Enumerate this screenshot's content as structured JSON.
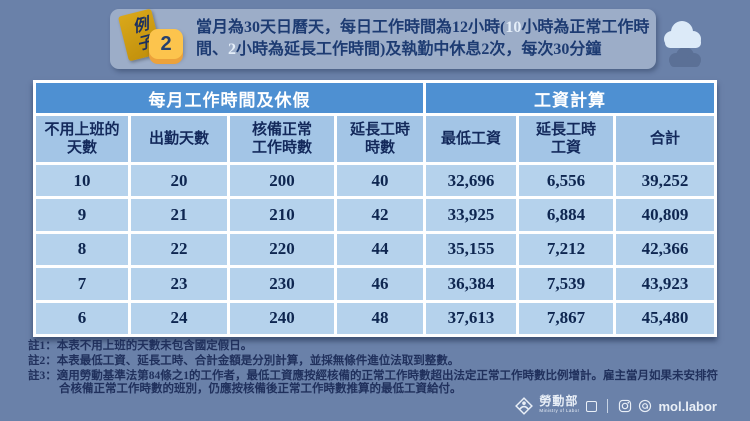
{
  "example_badge": {
    "label": "例子",
    "number": "2"
  },
  "header": {
    "segments": [
      {
        "text": "當月為30天日曆天，每日工作時間為12小時(",
        "highlight": false
      },
      {
        "text": "10",
        "highlight": true
      },
      {
        "text": "小時為正常工作時間、",
        "highlight": false
      },
      {
        "text": "2",
        "highlight": true
      },
      {
        "text": "小時為延長工作時間)及執勤中休息2次，每次30分鐘",
        "highlight": false
      }
    ]
  },
  "table": {
    "group_headers": [
      {
        "label": "每月工作時間及休假",
        "colspan": 4
      },
      {
        "label": "工資計算",
        "colspan": 3
      }
    ],
    "columns": [
      "不用上班的\n天數",
      "出勤天數",
      "核備正常\n工作時數",
      "延長工時\n時數",
      "最低工資",
      "延長工時\n工資",
      "合計"
    ],
    "rows": [
      [
        "10",
        "20",
        "200",
        "40",
        "32,696",
        "6,556",
        "39,252"
      ],
      [
        "9",
        "21",
        "210",
        "42",
        "33,925",
        "6,884",
        "40,809"
      ],
      [
        "8",
        "22",
        "220",
        "44",
        "35,155",
        "7,212",
        "42,366"
      ],
      [
        "7",
        "23",
        "230",
        "46",
        "36,384",
        "7,539",
        "43,923"
      ],
      [
        "6",
        "24",
        "240",
        "48",
        "37,613",
        "7,867",
        "45,480"
      ]
    ]
  },
  "notes": [
    "註1：本表不用上班的天數未包含國定假日。",
    "註2：本表最低工資、延長工時、合計金額是分別計算，並採無條件進位法取到整數。",
    "註3：適用勞動基準法第84條之1的工作者，最低工資應按經核備的正常工作時數超出法定正常工作時數比例增計。雇主當月如果未安排符合核備正常工作時數的班別，仍應按核備後正常工作時數推算的最低工資給付。"
  ],
  "footer": {
    "ministry": "勞動部",
    "ministry_sub": "Ministry of Labor",
    "social_handle": "mol.labor"
  },
  "colors": {
    "page_background": "#6A81A9",
    "banner_background": "#9CADC8",
    "banner_text": "#1D3B72",
    "banner_highlight_text": "#E4EEF9",
    "badge_gold": "#C8960C",
    "badge_number_yellow": "#FCC44D",
    "badge_number_shadow": "#ECA23B",
    "group_header_blue": "#4E90D2",
    "column_header_blue": "#A3C5E6",
    "row_blue": "#B5D2EC",
    "table_text_navy": "#0E2650",
    "notes_text": "#20305C",
    "footer_text": "#E9EFF7"
  }
}
